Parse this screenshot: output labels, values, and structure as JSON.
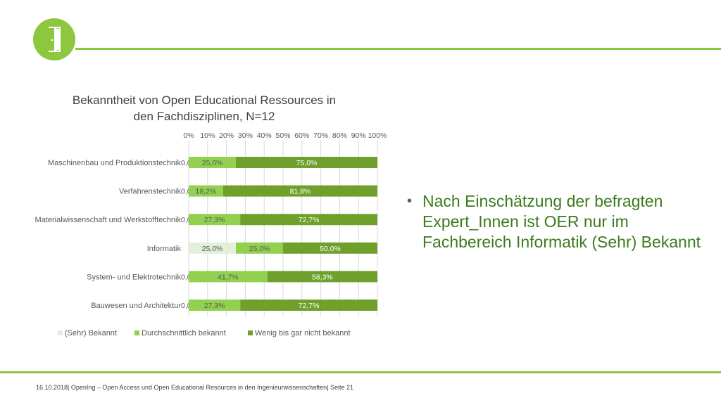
{
  "slide": {
    "bullet_text": "Nach Einschätzung der befragten Expert_Innen ist OER nur im Fachbereich Informatik (Sehr) Bekannt",
    "footer": "16.10.2018| OpenIng – Open Access und Open Educational Resources in den Ingenieurwissenschaften| Seite 21",
    "accent_color": "#8dc63f"
  },
  "chart_data": {
    "type": "bar",
    "orientation": "horizontal",
    "stacked": "percent",
    "title": "Bekanntheit von Open Educational Ressources in den Fachdisziplinen, N=12",
    "title_lines": [
      "Bekanntheit von Open Educational Ressources in",
      "den Fachdisziplinen, N=12"
    ],
    "xlim": [
      0,
      100
    ],
    "x_ticks": [
      "0%",
      "10%",
      "20%",
      "30%",
      "40%",
      "50%",
      "60%",
      "70%",
      "80%",
      "90%",
      "100%"
    ],
    "x_axis_position": "top",
    "grid": true,
    "legend_position": "bottom",
    "categories": [
      "Maschinenbau und Produktionstechnik",
      "Verfahrenstechnik",
      "Materialwissenschaft und Werkstofftechnik",
      "Informatik",
      "System- und Elektrotechnik",
      "Bauwesen und Architektur"
    ],
    "series": [
      {
        "name": "(Sehr) Bekannt",
        "color": "#e2efd9",
        "values": [
          0.0,
          0.0,
          0.0,
          25.0,
          0.0,
          0.0
        ],
        "labels": [
          "0,0%",
          "0,0%",
          "0,0%",
          "25,0%",
          "0,0%",
          "0,0%"
        ]
      },
      {
        "name": "Durchschnittlich bekannt",
        "color": "#92d050",
        "values": [
          25.0,
          18.2,
          27.3,
          25.0,
          41.7,
          27.3
        ],
        "labels": [
          "25,0%",
          "18,2%",
          "27,3%",
          "25,0%",
          "41,7%",
          "27,3%"
        ]
      },
      {
        "name": "Wenig bis gar nicht bekannt",
        "color": "#6fa02c",
        "values": [
          75.0,
          81.8,
          72.7,
          50.0,
          58.3,
          72.7
        ],
        "labels": [
          "75,0%",
          "81,8%",
          "72,7%",
          "50,0%",
          "58,3%",
          "72,7%"
        ]
      }
    ]
  }
}
